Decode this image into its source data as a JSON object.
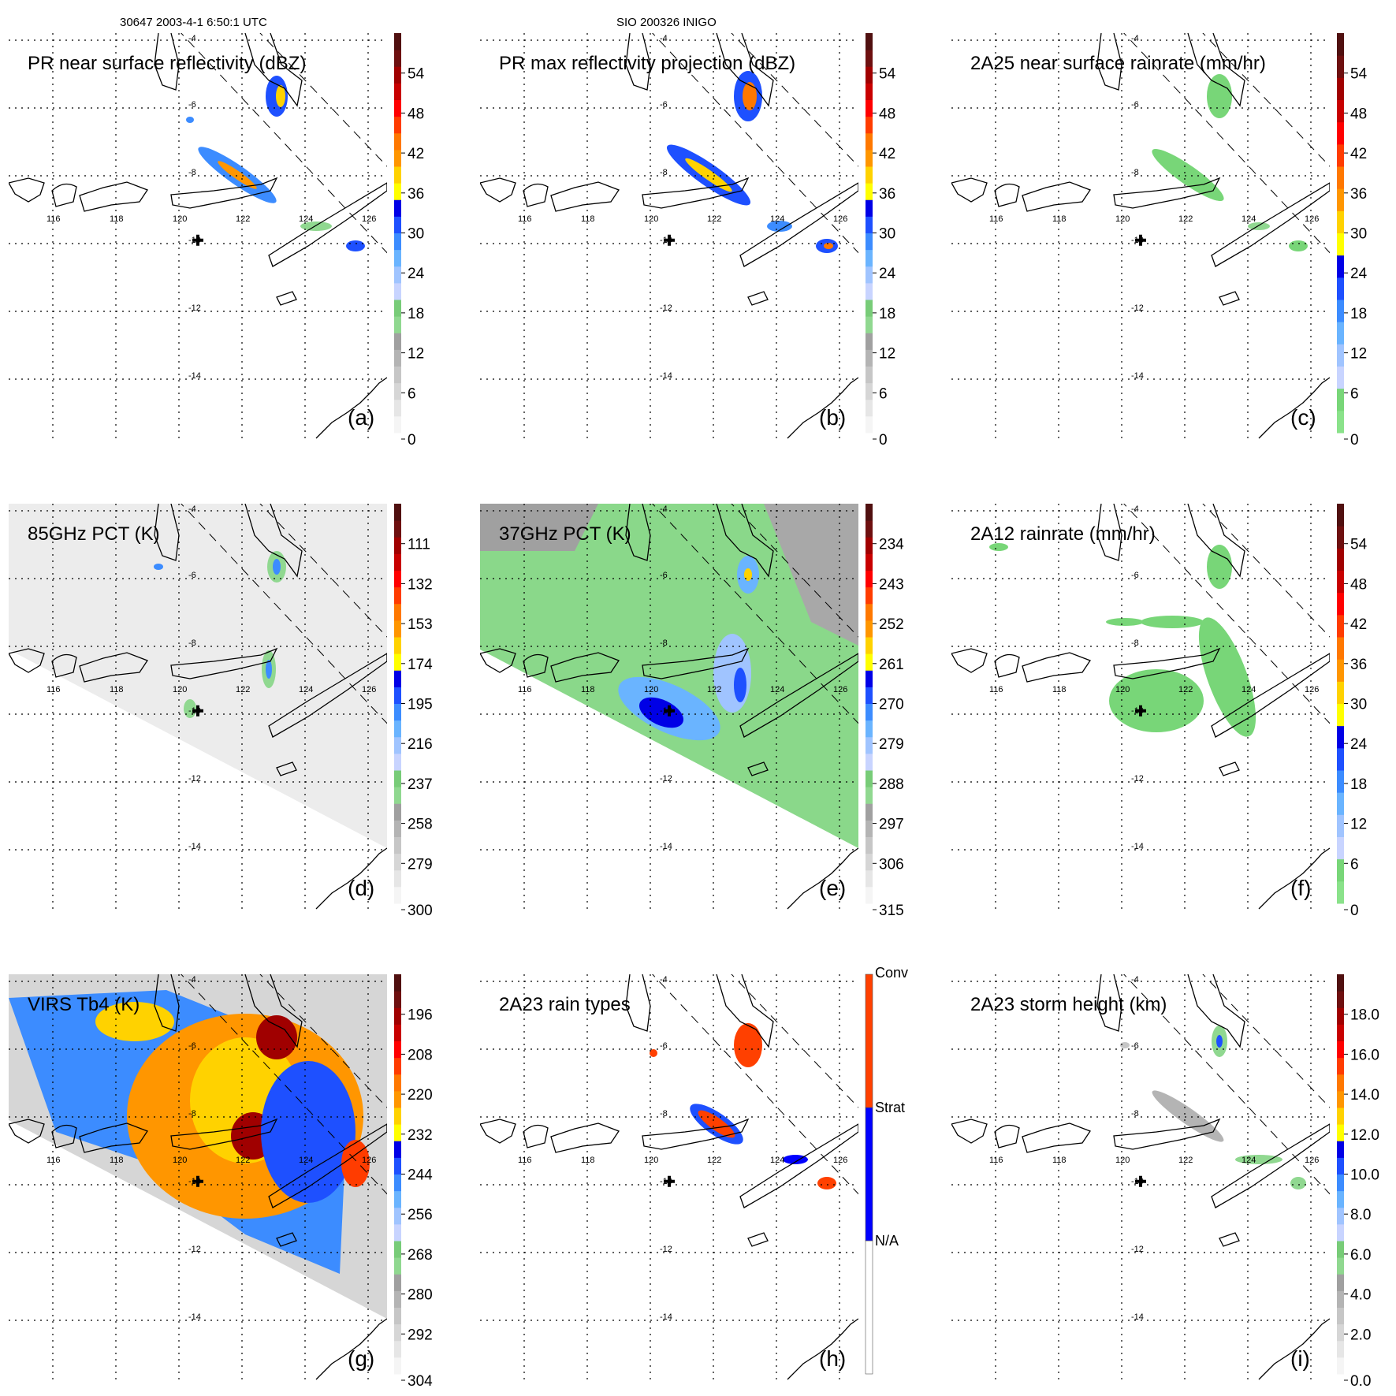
{
  "header": {
    "left": "30647 2003-4-1 6:50:1 UTC",
    "center": "SIO 200326 INIGO"
  },
  "chart_data": {
    "type": "heatmap",
    "map": {
      "lon_ticks": [
        "116",
        "118",
        "120",
        "122",
        "124",
        "126"
      ],
      "lat_ticks": [
        "-4",
        "-6",
        "-8",
        "-10",
        "-12",
        "-14"
      ],
      "lon_range": [
        114.6,
        127.8
      ],
      "lat_range": [
        -3.8,
        -15.8
      ],
      "storm_center_marker": {
        "lon": 120.6,
        "lat": -9.9
      }
    },
    "palettes": {
      "standard": [
        "#f5f5f5",
        "#e6e6e6",
        "#d6d6d6",
        "#c6c6c6",
        "#b4b4b4",
        "#a0a0a0",
        "#90d890",
        "#78cc78",
        "#c8d4ff",
        "#a0c4ff",
        "#6ab4ff",
        "#3c8cff",
        "#1e50ff",
        "#0000e6",
        "#ffff00",
        "#ffd200",
        "#ff9600",
        "#ff7800",
        "#ff3c00",
        "#ff0000",
        "#c80000",
        "#a00000",
        "#6e1010",
        "#501010"
      ],
      "rain": [
        "#8ae28a",
        "#78d678",
        "#c8d4ff",
        "#a0c4ff",
        "#6ab4ff",
        "#3c8cff",
        "#1e50ff",
        "#0000e6",
        "#ffff00",
        "#ffd200",
        "#ff9600",
        "#ff7800",
        "#ff3c00",
        "#ff0000",
        "#c80000",
        "#a00000",
        "#6e1010",
        "#501010"
      ],
      "types": [
        "#ffffff",
        "#0000ff",
        "#ff4000"
      ]
    },
    "panels": [
      {
        "id": "a",
        "title": "PR near surface reflectivity (dBZ)",
        "letter": "(a)",
        "palette": "standard",
        "cbar_labels": [
          "0",
          "6",
          "12",
          "18",
          "24",
          "30",
          "36",
          "42",
          "48",
          "54"
        ],
        "background": "none"
      },
      {
        "id": "b",
        "title": "PR max reflectivity projection (dBZ)",
        "letter": "(b)",
        "palette": "standard",
        "cbar_labels": [
          "0",
          "6",
          "12",
          "18",
          "24",
          "30",
          "36",
          "42",
          "48",
          "54"
        ],
        "background": "none"
      },
      {
        "id": "c",
        "title": "2A25 near surface rainrate (mm/hr)",
        "letter": "(c)",
        "palette": "rain",
        "cbar_labels": [
          "0",
          "6",
          "12",
          "18",
          "24",
          "30",
          "36",
          "42",
          "48",
          "54"
        ],
        "background": "none"
      },
      {
        "id": "d",
        "title": "85GHz PCT (K)",
        "letter": "(d)",
        "palette": "standard",
        "cbar_labels": [
          "300",
          "279",
          "258",
          "237",
          "216",
          "195",
          "174",
          "153",
          "132",
          "111"
        ],
        "background": "grey"
      },
      {
        "id": "e",
        "title": "37GHz PCT (K)",
        "letter": "(e)",
        "palette": "standard",
        "cbar_labels": [
          "315",
          "306",
          "297",
          "288",
          "279",
          "270",
          "261",
          "252",
          "243",
          "234"
        ],
        "background": "green"
      },
      {
        "id": "f",
        "title": "2A12 rainrate (mm/hr)",
        "letter": "(f)",
        "palette": "rain",
        "cbar_labels": [
          "0",
          "6",
          "12",
          "18",
          "24",
          "30",
          "36",
          "42",
          "48",
          "54"
        ],
        "background": "none"
      },
      {
        "id": "g",
        "title": "VIRS Tb4 (K)",
        "letter": "(g)",
        "palette": "standard",
        "cbar_labels": [
          "304",
          "292",
          "280",
          "268",
          "256",
          "244",
          "232",
          "220",
          "208",
          "196"
        ],
        "background": "ir"
      },
      {
        "id": "h",
        "title": "2A23 rain types",
        "letter": "(h)",
        "palette": "types",
        "cbar_labels": [
          "N/A",
          "Strat",
          "Conv"
        ],
        "background": "none"
      },
      {
        "id": "i",
        "title": "2A23 storm height (km)",
        "letter": "(i)",
        "palette": "standard",
        "cbar_labels": [
          "0.0",
          "2.0",
          "4.0",
          "6.0",
          "8.0",
          "10.0",
          "12.0",
          "14.0",
          "16.0",
          "18.0"
        ],
        "background": "none"
      }
    ]
  }
}
